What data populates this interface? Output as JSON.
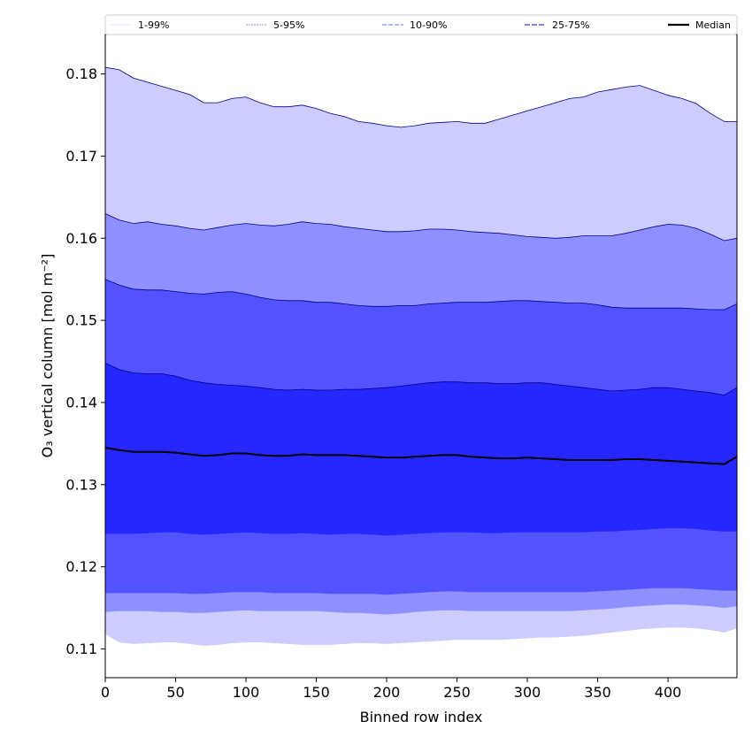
{
  "chart_data": {
    "type": "area",
    "title": "",
    "xlabel": "Binned row index",
    "ylabel": "O₃ vertical column [mol m⁻²]",
    "xlim": [
      0,
      449
    ],
    "ylim": [
      0.1065,
      0.1848
    ],
    "xticks": [
      0,
      50,
      100,
      150,
      200,
      250,
      300,
      350,
      400
    ],
    "yticks": [
      0.11,
      0.12,
      0.13,
      0.14,
      0.15,
      0.16,
      0.17,
      0.18
    ],
    "ytick_labels": [
      "0.11",
      "0.12",
      "0.13",
      "0.14",
      "0.15",
      "0.16",
      "0.17",
      "0.18"
    ],
    "colors": {
      "band_1_99": "#ccccff",
      "band_5_95": "#8f8fff",
      "band_10_90": "#5252ff",
      "band_25_75": "#2626ff",
      "edge": "#00008b",
      "median": "#000000"
    },
    "legend": {
      "placement": "top",
      "entries": [
        "1-99%",
        "5-95%",
        "10-90%",
        "25-75%",
        "Median"
      ]
    },
    "x": [
      0,
      10,
      20,
      30,
      40,
      50,
      60,
      70,
      80,
      90,
      100,
      110,
      120,
      130,
      140,
      150,
      160,
      170,
      180,
      190,
      200,
      210,
      220,
      230,
      240,
      250,
      260,
      270,
      280,
      290,
      300,
      310,
      320,
      330,
      340,
      350,
      360,
      370,
      380,
      390,
      400,
      410,
      420,
      430,
      440,
      449
    ],
    "series": [
      {
        "name": "99th percentile",
        "values": [
          0.1808,
          0.1805,
          0.1795,
          0.179,
          0.1785,
          0.178,
          0.1775,
          0.1765,
          0.1765,
          0.177,
          0.1772,
          0.1765,
          0.176,
          0.176,
          0.1762,
          0.1758,
          0.1752,
          0.1748,
          0.1742,
          0.174,
          0.1737,
          0.1735,
          0.1737,
          0.174,
          0.1741,
          0.1742,
          0.174,
          0.174,
          0.1745,
          0.175,
          0.1755,
          0.176,
          0.1765,
          0.177,
          0.1772,
          0.1778,
          0.1781,
          0.1784,
          0.1786,
          0.178,
          0.1774,
          0.177,
          0.1764,
          0.1752,
          0.1742,
          0.1742
        ]
      },
      {
        "name": "95th percentile",
        "values": [
          0.163,
          0.1622,
          0.1618,
          0.162,
          0.1617,
          0.1615,
          0.1612,
          0.161,
          0.1613,
          0.1616,
          0.1618,
          0.1616,
          0.1615,
          0.1617,
          0.162,
          0.1618,
          0.1617,
          0.1614,
          0.1612,
          0.161,
          0.1608,
          0.1608,
          0.1609,
          0.1611,
          0.1611,
          0.161,
          0.1608,
          0.1607,
          0.1606,
          0.1604,
          0.1602,
          0.1601,
          0.16,
          0.1601,
          0.1603,
          0.1603,
          0.1603,
          0.1606,
          0.161,
          0.1614,
          0.1617,
          0.1616,
          0.1612,
          0.1605,
          0.1597,
          0.16
        ]
      },
      {
        "name": "90th percentile",
        "values": [
          0.155,
          0.1543,
          0.1538,
          0.1537,
          0.1537,
          0.1535,
          0.1533,
          0.1532,
          0.1534,
          0.1535,
          0.1532,
          0.1528,
          0.1525,
          0.1524,
          0.1524,
          0.1522,
          0.1522,
          0.152,
          0.1518,
          0.1517,
          0.1517,
          0.1518,
          0.1518,
          0.152,
          0.1521,
          0.1522,
          0.1522,
          0.1522,
          0.1523,
          0.1524,
          0.1524,
          0.1523,
          0.1522,
          0.1521,
          0.1521,
          0.1519,
          0.1516,
          0.1515,
          0.1515,
          0.1515,
          0.1515,
          0.1515,
          0.1514,
          0.1513,
          0.1513,
          0.152
        ]
      },
      {
        "name": "75th percentile",
        "values": [
          0.1448,
          0.144,
          0.1436,
          0.1435,
          0.1435,
          0.1432,
          0.1427,
          0.1424,
          0.1422,
          0.1421,
          0.142,
          0.1418,
          0.1416,
          0.1415,
          0.1416,
          0.1415,
          0.1415,
          0.1416,
          0.1416,
          0.1417,
          0.1418,
          0.142,
          0.1422,
          0.1424,
          0.1425,
          0.1425,
          0.1424,
          0.1424,
          0.1423,
          0.1423,
          0.1424,
          0.1424,
          0.1422,
          0.142,
          0.1418,
          0.1416,
          0.1414,
          0.1415,
          0.1416,
          0.1418,
          0.1418,
          0.1416,
          0.1414,
          0.1412,
          0.1409,
          0.1418
        ]
      },
      {
        "name": "Median",
        "values": [
          0.1345,
          0.1342,
          0.134,
          0.134,
          0.134,
          0.1339,
          0.1337,
          0.1335,
          0.1336,
          0.1338,
          0.1338,
          0.1336,
          0.1335,
          0.1335,
          0.1337,
          0.1336,
          0.1336,
          0.1336,
          0.1335,
          0.1334,
          0.1333,
          0.1333,
          0.1334,
          0.1335,
          0.1336,
          0.1336,
          0.1334,
          0.1333,
          0.1332,
          0.1332,
          0.1333,
          0.1332,
          0.1331,
          0.133,
          0.133,
          0.133,
          0.133,
          0.1331,
          0.1331,
          0.133,
          0.1329,
          0.1328,
          0.1327,
          0.1326,
          0.1325,
          0.1334
        ]
      },
      {
        "name": "25th percentile",
        "values": [
          0.124,
          0.124,
          0.124,
          0.1241,
          0.1242,
          0.1242,
          0.124,
          0.1239,
          0.124,
          0.1241,
          0.1242,
          0.1241,
          0.124,
          0.124,
          0.1241,
          0.124,
          0.1239,
          0.124,
          0.124,
          0.1239,
          0.1238,
          0.1239,
          0.124,
          0.1241,
          0.1242,
          0.1242,
          0.1242,
          0.1241,
          0.1241,
          0.1242,
          0.1242,
          0.1242,
          0.1242,
          0.1242,
          0.1242,
          0.1243,
          0.1243,
          0.1244,
          0.1245,
          0.1246,
          0.1247,
          0.1247,
          0.1246,
          0.1244,
          0.1243,
          0.1243
        ]
      },
      {
        "name": "10th percentile",
        "values": [
          0.1168,
          0.1168,
          0.1168,
          0.1168,
          0.1168,
          0.1168,
          0.1167,
          0.1167,
          0.1168,
          0.1169,
          0.1169,
          0.1169,
          0.1168,
          0.1168,
          0.1168,
          0.1168,
          0.1167,
          0.1167,
          0.1167,
          0.1167,
          0.1166,
          0.1167,
          0.1168,
          0.1169,
          0.117,
          0.117,
          0.1169,
          0.1169,
          0.1169,
          0.1169,
          0.1169,
          0.1169,
          0.1169,
          0.1169,
          0.1169,
          0.117,
          0.1171,
          0.1172,
          0.1173,
          0.1174,
          0.1174,
          0.1174,
          0.1173,
          0.1172,
          0.1171,
          0.1171
        ]
      },
      {
        "name": "5th percentile",
        "values": [
          0.1145,
          0.1146,
          0.1146,
          0.1146,
          0.1145,
          0.1145,
          0.1144,
          0.1144,
          0.1145,
          0.1146,
          0.1147,
          0.1146,
          0.1146,
          0.1146,
          0.1146,
          0.1146,
          0.1145,
          0.1144,
          0.1144,
          0.1143,
          0.1142,
          0.1143,
          0.1145,
          0.1146,
          0.1147,
          0.1147,
          0.1146,
          0.1146,
          0.1146,
          0.1146,
          0.1146,
          0.1146,
          0.1146,
          0.1146,
          0.1147,
          0.1148,
          0.1149,
          0.1151,
          0.1152,
          0.1153,
          0.1154,
          0.1154,
          0.1153,
          0.1152,
          0.115,
          0.1152
        ]
      },
      {
        "name": "1st percentile",
        "values": [
          0.1118,
          0.1108,
          0.1106,
          0.1107,
          0.1108,
          0.1108,
          0.1106,
          0.1104,
          0.1105,
          0.1107,
          0.1108,
          0.1108,
          0.1107,
          0.1106,
          0.1105,
          0.1105,
          0.1105,
          0.1106,
          0.1107,
          0.1107,
          0.1106,
          0.1107,
          0.1108,
          0.1109,
          0.111,
          0.1111,
          0.1111,
          0.1111,
          0.1111,
          0.1112,
          0.1113,
          0.1114,
          0.1114,
          0.1115,
          0.1116,
          0.1118,
          0.112,
          0.1122,
          0.1124,
          0.1125,
          0.1126,
          0.1126,
          0.1125,
          0.1123,
          0.112,
          0.1125
        ]
      }
    ]
  }
}
